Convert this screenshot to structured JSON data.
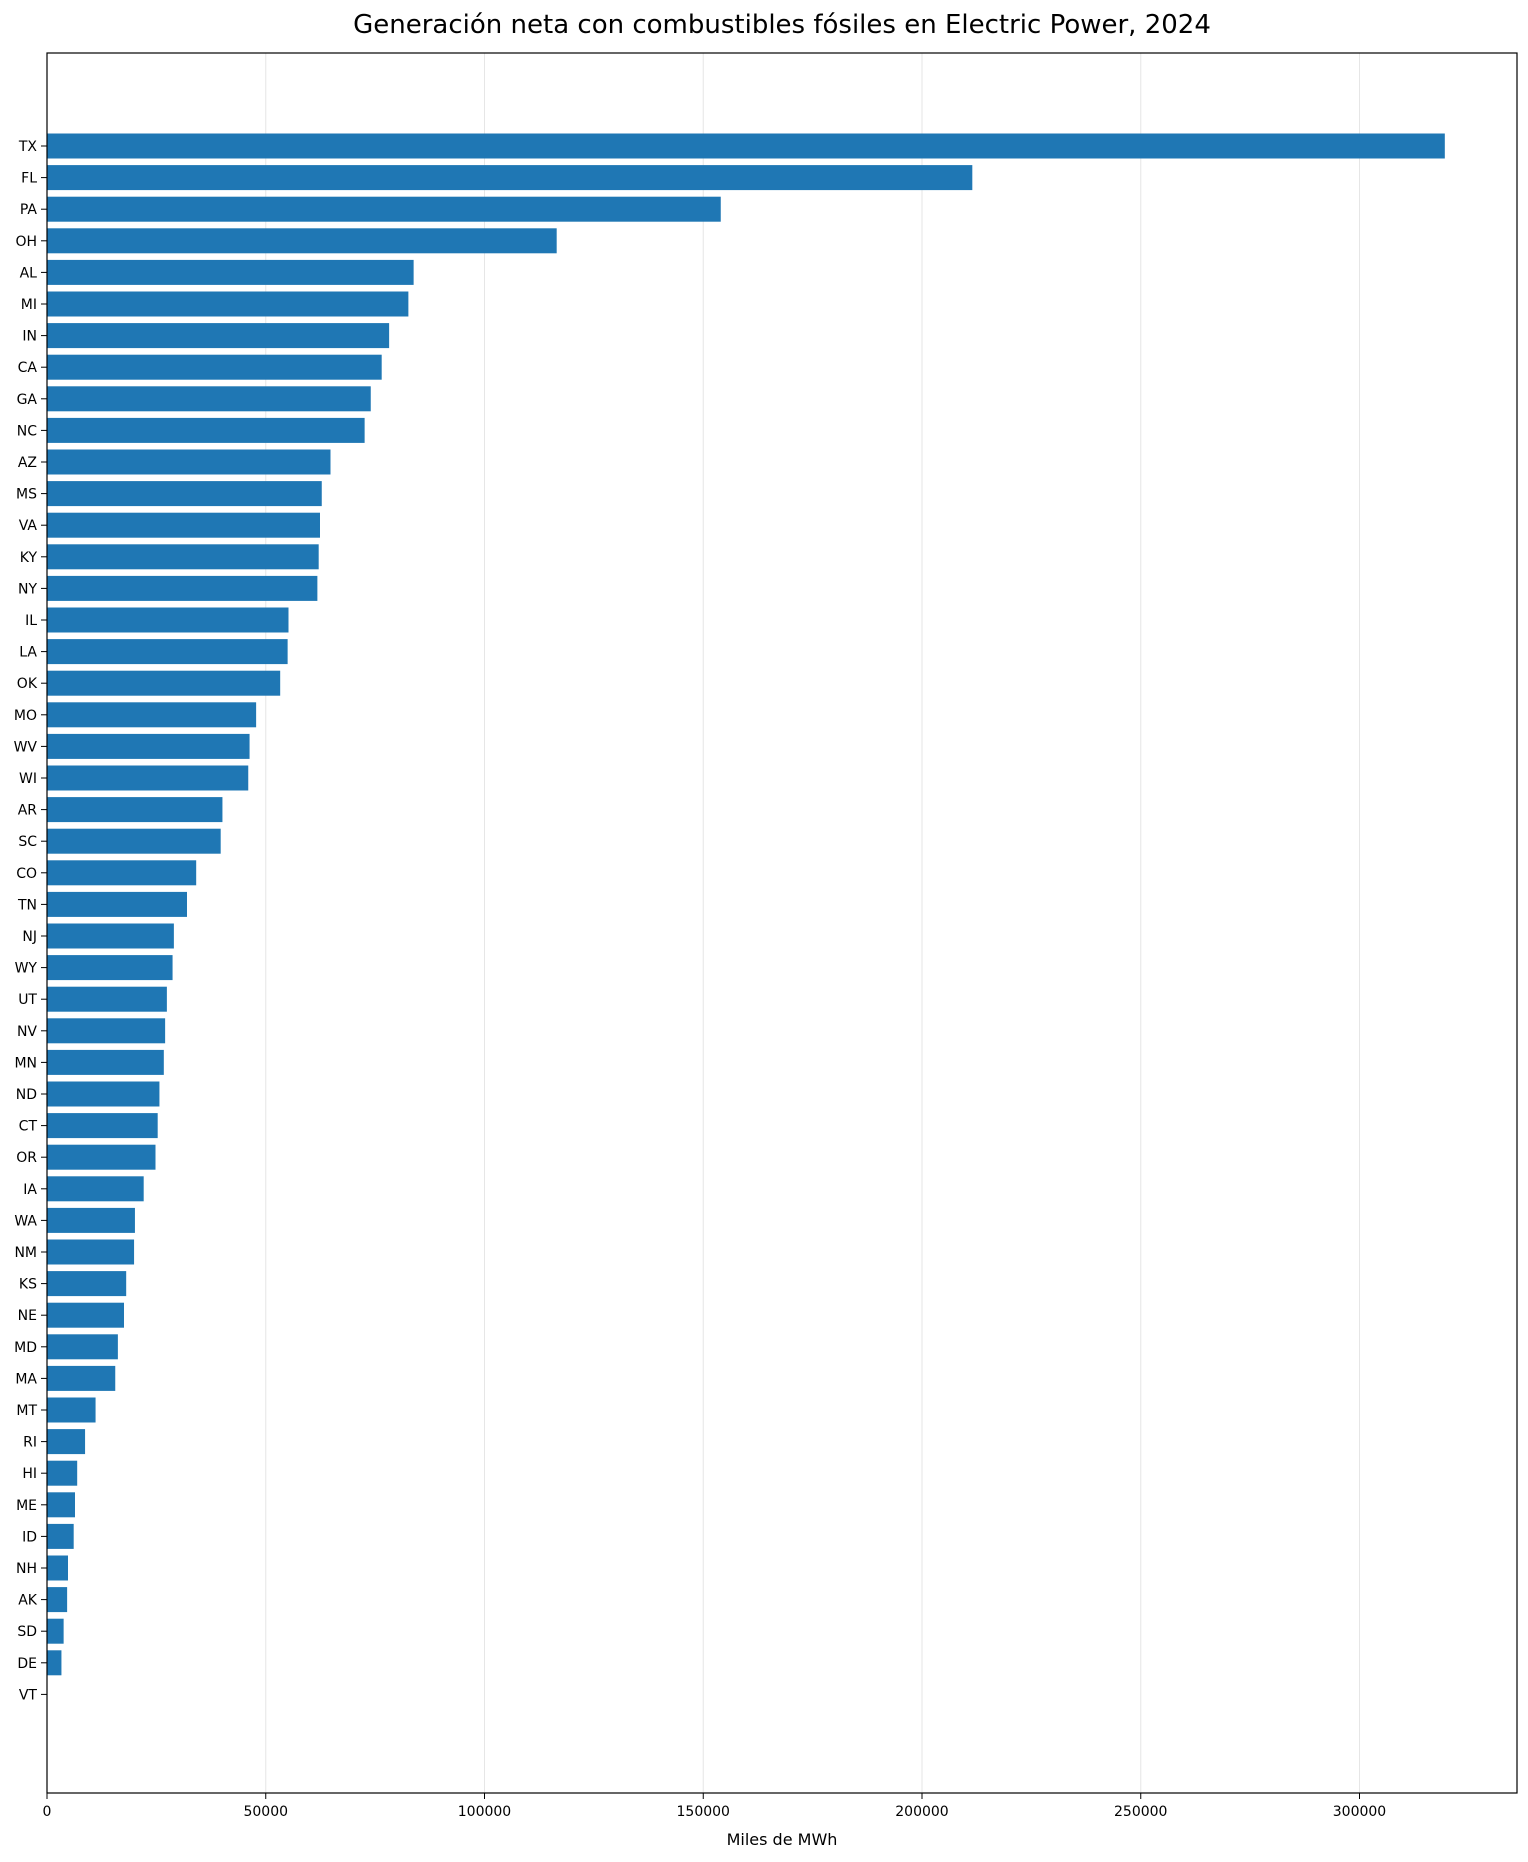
{
  "chart_data": {
    "type": "bar",
    "orientation": "horizontal",
    "title": "Generación neta con combustibles fósiles en Electric Power, 2024",
    "xlabel": "Miles de MWh",
    "ylabel": "",
    "xlim": [
      0,
      336000
    ],
    "xticks": [
      0,
      50000,
      100000,
      150000,
      200000,
      250000,
      300000
    ],
    "xtick_labels": [
      "0",
      "50000",
      "100000",
      "150000",
      "200000",
      "250000",
      "300000"
    ],
    "grid": "vertical",
    "bar_color": "#1f77b4",
    "categories": [
      "TX",
      "FL",
      "PA",
      "OH",
      "AL",
      "MI",
      "IN",
      "CA",
      "GA",
      "NC",
      "AZ",
      "MS",
      "VA",
      "KY",
      "NY",
      "IL",
      "LA",
      "OK",
      "MO",
      "WV",
      "WI",
      "AR",
      "SC",
      "CO",
      "TN",
      "NJ",
      "WY",
      "UT",
      "NV",
      "MN",
      "ND",
      "CT",
      "OR",
      "IA",
      "WA",
      "NM",
      "KS",
      "NE",
      "MD",
      "MA",
      "MT",
      "RI",
      "HI",
      "ME",
      "ID",
      "NH",
      "AK",
      "SD",
      "DE",
      "VT"
    ],
    "values": [
      319500,
      211500,
      154000,
      116500,
      83800,
      82600,
      78200,
      76500,
      74000,
      72600,
      64800,
      62800,
      62400,
      62100,
      61800,
      55200,
      55000,
      53300,
      47800,
      46300,
      46000,
      40100,
      39700,
      34100,
      32000,
      29000,
      28700,
      27400,
      27000,
      26700,
      25700,
      25300,
      24800,
      22100,
      20100,
      19900,
      18100,
      17600,
      16200,
      15600,
      11100,
      8700,
      6900,
      6400,
      6100,
      4800,
      4600,
      3800,
      3300,
      100
    ]
  }
}
